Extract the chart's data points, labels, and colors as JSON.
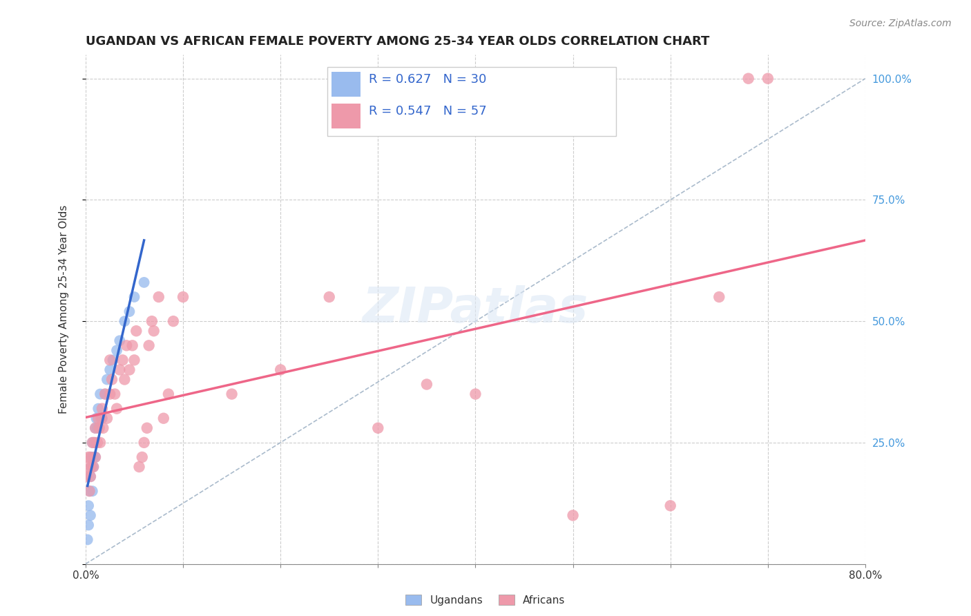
{
  "title": "UGANDAN VS AFRICAN FEMALE POVERTY AMONG 25-34 YEAR OLDS CORRELATION CHART",
  "source": "Source: ZipAtlas.com",
  "ylabel": "Female Poverty Among 25-34 Year Olds",
  "xlim": [
    0.0,
    0.8
  ],
  "ylim": [
    0.0,
    1.05
  ],
  "xticks": [
    0.0,
    0.1,
    0.2,
    0.3,
    0.4,
    0.5,
    0.6,
    0.7,
    0.8
  ],
  "ytick_positions": [
    0.0,
    0.25,
    0.5,
    0.75,
    1.0
  ],
  "ytick_labels_right": [
    "",
    "25.0%",
    "50.0%",
    "75.0%",
    "100.0%"
  ],
  "background_color": "#ffffff",
  "grid_color": "#cccccc",
  "ugandan_color": "#99bbee",
  "african_color": "#ee99aa",
  "ugandan_R": 0.627,
  "ugandan_N": 30,
  "african_R": 0.547,
  "african_N": 57,
  "trend_blue_color": "#3366cc",
  "trend_pink_color": "#ee6688",
  "ref_line_color": "#aabbcc",
  "ugandans_x": [
    0.002,
    0.003,
    0.003,
    0.004,
    0.005,
    0.005,
    0.006,
    0.006,
    0.007,
    0.007,
    0.008,
    0.008,
    0.009,
    0.01,
    0.01,
    0.011,
    0.012,
    0.013,
    0.015,
    0.017,
    0.02,
    0.022,
    0.025,
    0.028,
    0.032,
    0.035,
    0.04,
    0.045,
    0.05,
    0.06
  ],
  "ugandans_y": [
    0.05,
    0.08,
    0.12,
    0.15,
    0.1,
    0.18,
    0.2,
    0.22,
    0.25,
    0.15,
    0.2,
    0.22,
    0.25,
    0.28,
    0.22,
    0.3,
    0.28,
    0.32,
    0.35,
    0.3,
    0.35,
    0.38,
    0.4,
    0.42,
    0.44,
    0.46,
    0.5,
    0.52,
    0.55,
    0.58
  ],
  "africans_x": [
    0.001,
    0.002,
    0.003,
    0.004,
    0.005,
    0.005,
    0.006,
    0.007,
    0.008,
    0.009,
    0.01,
    0.01,
    0.012,
    0.013,
    0.014,
    0.015,
    0.016,
    0.017,
    0.018,
    0.02,
    0.022,
    0.025,
    0.025,
    0.027,
    0.03,
    0.032,
    0.035,
    0.038,
    0.04,
    0.042,
    0.045,
    0.048,
    0.05,
    0.052,
    0.055,
    0.058,
    0.06,
    0.063,
    0.065,
    0.068,
    0.07,
    0.075,
    0.08,
    0.085,
    0.09,
    0.1,
    0.15,
    0.2,
    0.25,
    0.3,
    0.35,
    0.4,
    0.5,
    0.6,
    0.65,
    0.68,
    0.7
  ],
  "africans_y": [
    0.18,
    0.2,
    0.22,
    0.15,
    0.18,
    0.22,
    0.2,
    0.25,
    0.2,
    0.25,
    0.22,
    0.28,
    0.25,
    0.3,
    0.28,
    0.25,
    0.3,
    0.32,
    0.28,
    0.35,
    0.3,
    0.35,
    0.42,
    0.38,
    0.35,
    0.32,
    0.4,
    0.42,
    0.38,
    0.45,
    0.4,
    0.45,
    0.42,
    0.48,
    0.2,
    0.22,
    0.25,
    0.28,
    0.45,
    0.5,
    0.48,
    0.55,
    0.3,
    0.35,
    0.5,
    0.55,
    0.35,
    0.4,
    0.55,
    0.28,
    0.37,
    0.35,
    0.1,
    0.12,
    0.55,
    1.0,
    1.0
  ],
  "watermark": "ZIPatlas",
  "legend_text_color": "#3366cc",
  "title_fontsize": 13,
  "source_fontsize": 10,
  "axis_label_fontsize": 11,
  "tick_fontsize": 11,
  "legend_fontsize": 13
}
